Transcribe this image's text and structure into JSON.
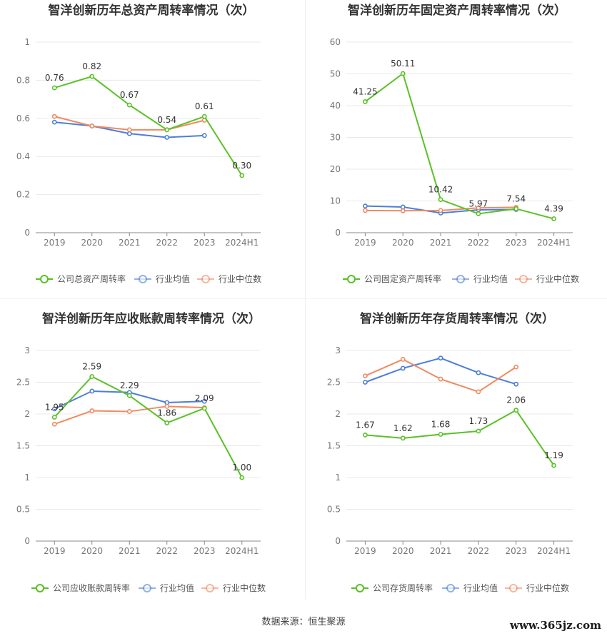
{
  "source_text": "数据来源：恒生聚源",
  "watermark": "www.365jz.com",
  "colors": {
    "company": "#5ac126",
    "avg": "#4d7fd8",
    "median": "#f08a62",
    "grid": "#e8e8e8",
    "axis": "#888888"
  },
  "chart_data": [
    {
      "type": "line",
      "title": "智洋创新历年总资产周转率情况（次）",
      "categories": [
        "2019",
        "2020",
        "2021",
        "2022",
        "2023",
        "2024H1"
      ],
      "ylim": [
        0,
        1
      ],
      "yticks": [
        0,
        0.2,
        0.4,
        0.6,
        0.8,
        1
      ],
      "ytick_labels": [
        "0",
        "0.2",
        "0.4",
        "0.6",
        "0.8",
        "1"
      ],
      "legend_position": "bottom",
      "series": [
        {
          "name": "公司总资产周转率",
          "role": "company",
          "values": [
            0.76,
            0.82,
            0.67,
            0.54,
            0.61,
            0.3
          ],
          "labels": [
            "0.76",
            "0.82",
            "0.67",
            "0.54",
            "0.61",
            "0.30"
          ]
        },
        {
          "name": "行业均值",
          "role": "avg",
          "values": [
            0.58,
            0.56,
            0.52,
            0.5,
            0.51,
            null
          ]
        },
        {
          "name": "行业中位数",
          "role": "median",
          "values": [
            0.61,
            0.56,
            0.54,
            0.54,
            0.59,
            null
          ]
        }
      ]
    },
    {
      "type": "line",
      "title": "智洋创新历年固定资产周转率情况（次）",
      "categories": [
        "2019",
        "2020",
        "2021",
        "2022",
        "2023",
        "2024H1"
      ],
      "ylim": [
        0,
        60
      ],
      "yticks": [
        0,
        10,
        20,
        30,
        40,
        50,
        60
      ],
      "ytick_labels": [
        "0",
        "10",
        "20",
        "30",
        "40",
        "50",
        "60"
      ],
      "legend_position": "bottom",
      "series": [
        {
          "name": "公司固定资产周转率",
          "role": "company",
          "values": [
            41.25,
            50.11,
            10.42,
            5.97,
            7.54,
            4.39
          ],
          "labels": [
            "41.25",
            "50.11",
            "10.42",
            "5.97",
            "7.54",
            "4.39"
          ]
        },
        {
          "name": "行业均值",
          "role": "avg",
          "values": [
            8.4,
            8.1,
            6.2,
            7.2,
            7.3,
            null
          ]
        },
        {
          "name": "行业中位数",
          "role": "median",
          "values": [
            7.0,
            6.9,
            7.0,
            7.8,
            8.0,
            null
          ]
        }
      ]
    },
    {
      "type": "line",
      "title": "智洋创新历年应收账款周转率情况（次）",
      "categories": [
        "2019",
        "2020",
        "2021",
        "2022",
        "2023",
        "2024H1"
      ],
      "ylim": [
        0,
        3
      ],
      "yticks": [
        0,
        0.5,
        1,
        1.5,
        2,
        2.5,
        3
      ],
      "ytick_labels": [
        "0",
        "0.5",
        "1",
        "1.5",
        "2",
        "2.5",
        "3"
      ],
      "legend_position": "bottom",
      "series": [
        {
          "name": "公司应收账款周转率",
          "role": "company",
          "values": [
            1.95,
            2.59,
            2.29,
            1.86,
            2.09,
            1.0
          ],
          "labels": [
            "1.95",
            "2.59",
            "2.29",
            "1.86",
            "2.09",
            "1.00"
          ]
        },
        {
          "name": "行业均值",
          "role": "avg",
          "values": [
            2.08,
            2.36,
            2.34,
            2.18,
            2.2,
            null
          ]
        },
        {
          "name": "行业中位数",
          "role": "median",
          "values": [
            1.84,
            2.05,
            2.04,
            2.12,
            2.1,
            null
          ]
        }
      ]
    },
    {
      "type": "line",
      "title": "智洋创新历年存货周转率情况（次）",
      "categories": [
        "2019",
        "2020",
        "2021",
        "2022",
        "2023",
        "2024H1"
      ],
      "ylim": [
        0,
        3
      ],
      "yticks": [
        0,
        0.5,
        1,
        1.5,
        2,
        2.5,
        3
      ],
      "ytick_labels": [
        "0",
        "0.5",
        "1",
        "1.5",
        "2",
        "2.5",
        "3"
      ],
      "legend_position": "bottom",
      "series": [
        {
          "name": "公司存货周转率",
          "role": "company",
          "values": [
            1.67,
            1.62,
            1.68,
            1.73,
            2.06,
            1.19
          ],
          "labels": [
            "1.67",
            "1.62",
            "1.68",
            "1.73",
            "2.06",
            "1.19"
          ]
        },
        {
          "name": "行业均值",
          "role": "avg",
          "values": [
            2.5,
            2.72,
            2.88,
            2.65,
            2.47,
            null
          ]
        },
        {
          "name": "行业中位数",
          "role": "median",
          "values": [
            2.6,
            2.86,
            2.55,
            2.35,
            2.74,
            null
          ]
        }
      ]
    }
  ]
}
